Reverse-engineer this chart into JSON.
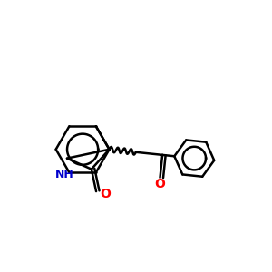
{
  "background": "#ffffff",
  "bond_color": "#000000",
  "N_color": "#0000cc",
  "O_color": "#ff0000",
  "bond_width": 1.8,
  "figsize": [
    3.0,
    3.0
  ],
  "dpi": 100,
  "xlim": [
    0,
    10
  ],
  "ylim": [
    0,
    10
  ]
}
